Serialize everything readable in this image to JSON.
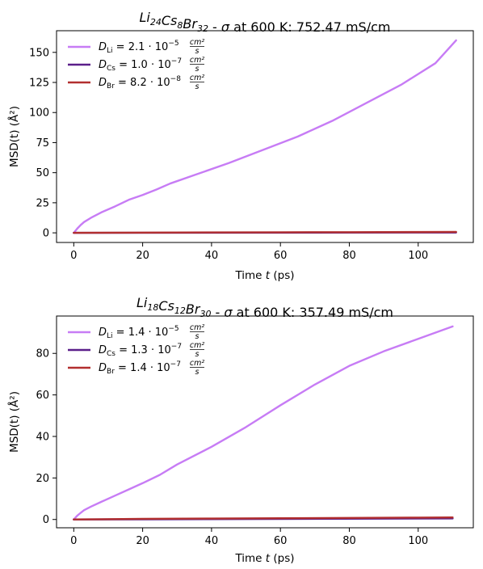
{
  "chart_data": [
    {
      "type": "line",
      "title": {
        "formula": [
          [
            "Li",
            "24"
          ],
          [
            "Cs",
            "8"
          ],
          [
            "Br",
            "32"
          ]
        ],
        "sigma_text": " at 600 K: 752.47 mS/cm"
      },
      "xlabel": "Time",
      "xlabel_var": "t",
      "xlabel_unit": "(ps)",
      "ylabel": "MSD(t) (Å²)",
      "xlim": [
        -5,
        116
      ],
      "ylim": [
        -8,
        168
      ],
      "xticks": [
        0,
        20,
        40,
        60,
        80,
        100
      ],
      "yticks": [
        0,
        25,
        50,
        75,
        100,
        125,
        150
      ],
      "grid": false,
      "legend_position": "upper-left",
      "series": [
        {
          "name": "Li",
          "label_value": "2.1",
          "label_exp": "−5",
          "color": "#c77cf5",
          "x": [
            0,
            1,
            2,
            3,
            5,
            8,
            12,
            16,
            20,
            24,
            28,
            35,
            45,
            55,
            65,
            75,
            85,
            95,
            105,
            111
          ],
          "y": [
            0,
            3.5,
            6.5,
            9,
            12.5,
            17,
            22,
            27.5,
            31.5,
            36,
            41,
            48,
            58,
            69,
            80,
            93,
            108,
            123,
            141,
            160
          ]
        },
        {
          "name": "Cs",
          "label_value": "1.0",
          "label_exp": "−7",
          "color": "#5b1f8a",
          "x": [
            0,
            111
          ],
          "y": [
            0,
            0.3
          ]
        },
        {
          "name": "Br",
          "label_value": "8.2",
          "label_exp": "−8",
          "color": "#b22f2f",
          "x": [
            0,
            20,
            40,
            60,
            80,
            100,
            111
          ],
          "y": [
            0,
            0.2,
            0.35,
            0.45,
            0.55,
            0.65,
            0.75
          ]
        }
      ],
      "legend_unit": "cm²/s"
    },
    {
      "type": "line",
      "title": {
        "formula": [
          [
            "Li",
            "18"
          ],
          [
            "Cs",
            "12"
          ],
          [
            "Br",
            "30"
          ]
        ],
        "sigma_text": " at 600 K: 357.49 mS/cm"
      },
      "xlabel": "Time",
      "xlabel_var": "t",
      "xlabel_unit": "(ps)",
      "ylabel": "MSD(t) (Å²)",
      "xlim": [
        -5,
        116
      ],
      "ylim": [
        -4,
        98
      ],
      "xticks": [
        0,
        20,
        40,
        60,
        80,
        100
      ],
      "yticks": [
        0,
        20,
        40,
        60,
        80
      ],
      "grid": false,
      "legend_position": "upper-left",
      "series": [
        {
          "name": "Li",
          "label_value": "1.4",
          "label_exp": "−5",
          "color": "#c77cf5",
          "x": [
            0,
            1,
            2,
            3,
            5,
            8,
            12,
            16,
            20,
            25,
            30,
            40,
            50,
            60,
            70,
            80,
            90,
            100,
            110
          ],
          "y": [
            0,
            1.8,
            3.2,
            4.5,
            6.2,
            8.5,
            11.5,
            14.5,
            17.5,
            21.5,
            26.5,
            35,
            44.5,
            55,
            65,
            74,
            81,
            87,
            93
          ]
        },
        {
          "name": "Cs",
          "label_value": "1.3",
          "label_exp": "−7",
          "color": "#5b1f8a",
          "x": [
            0,
            110
          ],
          "y": [
            0,
            0.5
          ]
        },
        {
          "name": "Br",
          "label_value": "1.4",
          "label_exp": "−7",
          "color": "#b22f2f",
          "x": [
            0,
            20,
            40,
            60,
            80,
            100,
            110
          ],
          "y": [
            0,
            0.3,
            0.45,
            0.6,
            0.75,
            0.9,
            1.0
          ]
        }
      ],
      "legend_unit": "cm²/s"
    }
  ]
}
